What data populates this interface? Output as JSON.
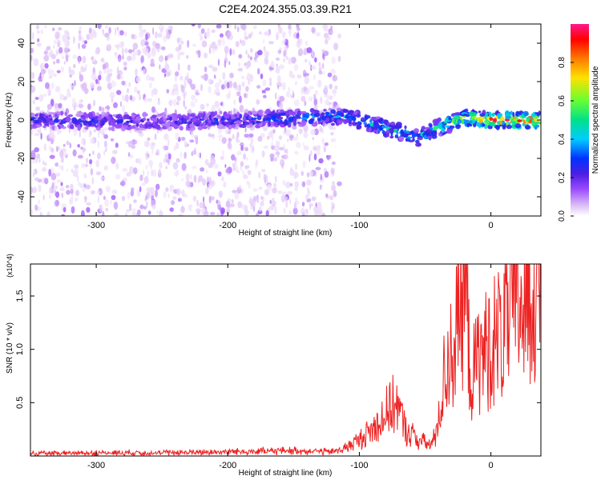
{
  "title": "C2E4.2024.355.03.39.R21",
  "chart_data": [
    {
      "type": "heatmap",
      "xlabel": "Height of straight line (km)",
      "ylabel": "Frequency (Hz)",
      "xlim": [
        -350,
        38
      ],
      "ylim": [
        -50,
        50
      ],
      "xticks": [
        -300,
        -200,
        -100,
        0
      ],
      "yticks": [
        -40,
        -20,
        0,
        20,
        40
      ],
      "colorbar": {
        "label": "Normalized spectral amplitude",
        "range": [
          0,
          1
        ],
        "ticks": [
          0.0,
          0.2,
          0.4,
          0.6,
          0.8
        ],
        "colormap": [
          "#ffffff",
          "#d9b8f5",
          "#9a4bff",
          "#4a1fe0",
          "#0033ff",
          "#00ccff",
          "#00e08a",
          "#66ff33",
          "#ffe000",
          "#ff7a00",
          "#ff0000",
          "#ff1a8c"
        ]
      },
      "ridge": [
        {
          "x": -350,
          "f": 0,
          "amp": 0.35
        },
        {
          "x": -250,
          "f": -1,
          "amp": 0.3
        },
        {
          "x": -150,
          "f": 1,
          "amp": 0.4
        },
        {
          "x": -110,
          "f": 2,
          "amp": 0.45
        },
        {
          "x": -80,
          "f": -4,
          "amp": 0.5
        },
        {
          "x": -55,
          "f": -9,
          "amp": 0.45
        },
        {
          "x": -40,
          "f": -4,
          "amp": 0.55
        },
        {
          "x": -20,
          "f": 1,
          "amp": 0.7
        },
        {
          "x": 0,
          "f": 0,
          "amp": 0.85
        },
        {
          "x": 38,
          "f": 0,
          "amp": 0.9
        }
      ],
      "noise_band": {
        "x_range": [
          -350,
          -115
        ],
        "f_range": [
          -50,
          50
        ],
        "amp": 0.15
      }
    },
    {
      "type": "line",
      "xlabel": "Height of straight line (km)",
      "ylabel": "SNR (10 * v/v)",
      "y_multiplier": "(x10^4)",
      "xlim": [
        -350,
        38
      ],
      "ylim": [
        0,
        18000
      ],
      "xticks": [
        -300,
        -200,
        -100,
        0
      ],
      "yticks": [
        5000,
        10000,
        15000
      ],
      "ytick_labels": [
        "0.5",
        "1.0",
        "1.5"
      ],
      "series": [
        {
          "color": "#ee2222",
          "x": [
            -350,
            -300,
            -250,
            -200,
            -150,
            -120,
            -110,
            -100,
            -90,
            -80,
            -72,
            -65,
            -55,
            -45,
            -40,
            -35,
            -30,
            -25,
            -20,
            -15,
            -10,
            0,
            10,
            20,
            30,
            38
          ],
          "y": [
            200,
            300,
            300,
            400,
            500,
            400,
            800,
            1500,
            2500,
            4000,
            5000,
            2500,
            1500,
            1000,
            3000,
            8000,
            10000,
            12000,
            16000,
            7000,
            9000,
            10500,
            12000,
            14000,
            15500,
            16500
          ]
        }
      ]
    }
  ]
}
